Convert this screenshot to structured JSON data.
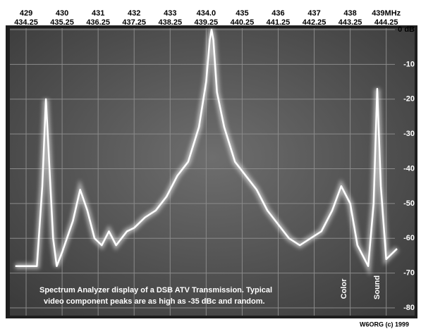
{
  "chart_data": {
    "type": "line",
    "xlim": [
      428.7,
      439.3
    ],
    "xticks": [
      429,
      430,
      431,
      432,
      433,
      {
        "value": 434,
        "label": "434.0"
      },
      435,
      436,
      437,
      438,
      {
        "value": 439,
        "label": "439MHz"
      }
    ],
    "x2lim": [
      433.95,
      444.55
    ],
    "x2ticks": [
      434.25,
      435.25,
      436.25,
      437.25,
      438.25,
      439.25,
      440.25,
      441.25,
      442.25,
      443.25,
      444.25
    ],
    "ylim": [
      -80,
      0
    ],
    "yticks": [
      {
        "value": 0,
        "label": "0 dB"
      },
      -10,
      -20,
      -30,
      -40,
      -50,
      -60,
      -70,
      -80
    ],
    "grid": true,
    "series": [
      {
        "color": "#ffffff",
        "x": [
          428.7,
          429.3,
          429.45,
          429.55,
          429.65,
          429.75,
          429.85,
          430.0,
          430.3,
          430.5,
          430.7,
          430.9,
          431.1,
          431.3,
          431.5,
          431.8,
          432.0,
          432.3,
          432.6,
          432.9,
          433.2,
          433.5,
          433.8,
          434.0,
          434.1,
          434.15,
          434.2,
          434.3,
          434.5,
          434.8,
          435.1,
          435.4,
          435.7,
          436.0,
          436.3,
          436.6,
          436.9,
          437.2,
          437.5,
          437.75,
          438.0,
          438.2,
          438.5,
          438.65,
          438.75,
          438.85,
          439.0,
          439.3
        ],
        "values": [
          -68,
          -68,
          -45,
          -20,
          -40,
          -60,
          -68,
          -64,
          -55,
          -46,
          -52,
          -60,
          -62,
          -58,
          -62,
          -58,
          -57,
          -54,
          -52,
          -48,
          -42,
          -38,
          -28,
          -15,
          -3,
          0,
          -3,
          -18,
          -28,
          -38,
          -42,
          -46,
          -52,
          -56,
          -60,
          -62,
          -60,
          -58,
          -52,
          -45,
          -50,
          -62,
          -68,
          -50,
          -17,
          -45,
          -66,
          -63
        ]
      }
    ],
    "annotations": [
      "Spectrum Analyzer display of a DSB ATV Transmission.  Typical",
      "video component peaks are as high as -35 dBc and random.",
      "Color",
      "Sound"
    ],
    "credit": "W6ORG (c) 1999"
  }
}
